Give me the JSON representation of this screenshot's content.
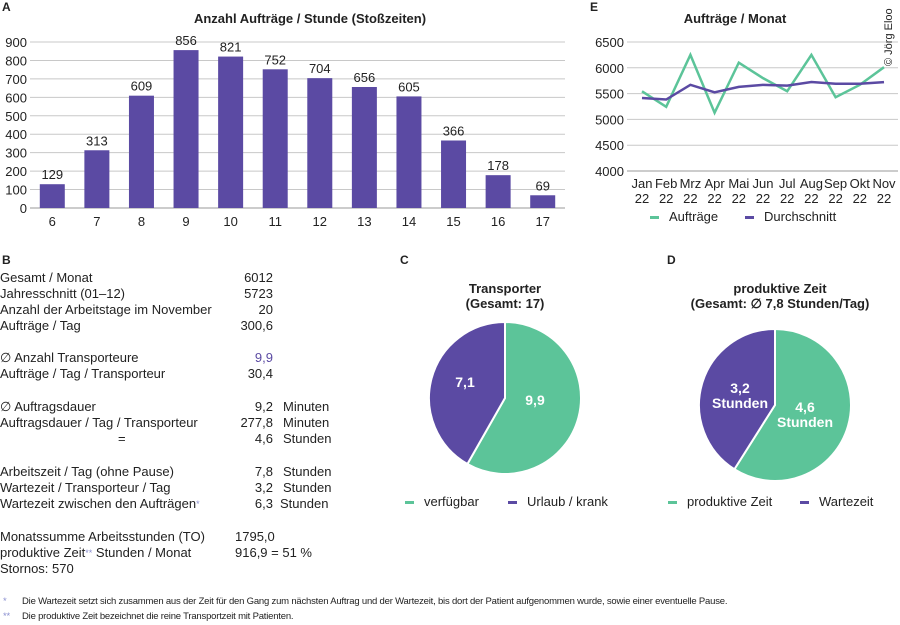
{
  "colors": {
    "green": "#5cc499",
    "purple": "#5b4aa3",
    "grid": "#c8c8c8",
    "highlight": "#5b4aa3",
    "footnote_marker": "#8a8fd0"
  },
  "copyright": "© Jörg Eloo",
  "chart_data": [
    {
      "panel": "A",
      "type": "bar",
      "title": "Anzahl Aufträge / Stunde (Stoßzeiten)",
      "categories": [
        "6",
        "7",
        "8",
        "9",
        "10",
        "11",
        "12",
        "13",
        "14",
        "15",
        "16",
        "17"
      ],
      "values": [
        129,
        313,
        609,
        856,
        821,
        752,
        704,
        656,
        605,
        366,
        178,
        69
      ],
      "data_labels": [
        "129",
        "313",
        "609",
        "856",
        "821",
        "752",
        "704",
        "656",
        "605",
        "366",
        "178",
        "69"
      ],
      "ylim": [
        0,
        900
      ],
      "yticks": [
        "0",
        "100",
        "200",
        "300",
        "400",
        "500",
        "600",
        "700",
        "800",
        "900"
      ],
      "grid": true,
      "color": "#5b4aa3"
    },
    {
      "panel": "E",
      "type": "line",
      "title": "Aufträge / Monat",
      "categories": [
        [
          "Jan",
          "22"
        ],
        [
          "Feb",
          "22"
        ],
        [
          "Mrz",
          "22"
        ],
        [
          "Apr",
          "22"
        ],
        [
          "Mai",
          "22"
        ],
        [
          "Jun",
          "22"
        ],
        [
          "Jul",
          "22"
        ],
        [
          "Aug",
          "22"
        ],
        [
          "Sep",
          "22"
        ],
        [
          "Okt",
          "22"
        ],
        [
          "Nov",
          "22"
        ]
      ],
      "series": [
        {
          "name": "Aufträge",
          "color": "#5cc499",
          "values": [
            5545,
            5245,
            6250,
            5130,
            6100,
            5800,
            5545,
            6250,
            5430,
            5670,
            6012
          ]
        },
        {
          "name": "Durchschnitt",
          "color": "#5b4aa3",
          "values": [
            5415,
            5385,
            5670,
            5525,
            5630,
            5670,
            5655,
            5725,
            5690,
            5690,
            5723
          ]
        }
      ],
      "ylim": [
        4000,
        6500
      ],
      "yticks": [
        "4000",
        "4500",
        "5000",
        "5500",
        "6000",
        "6500"
      ],
      "grid": true,
      "legend": "bottom"
    },
    {
      "panel": "C",
      "type": "pie",
      "title": [
        "Transporter",
        "(Gesamt: 17)"
      ],
      "slices": [
        {
          "name": "verfügbar",
          "value": 9.9,
          "label": [
            "9,9"
          ],
          "color": "#5cc499"
        },
        {
          "name": "Urlaub / krank",
          "value": 7.1,
          "label": [
            "7,1"
          ],
          "color": "#5b4aa3"
        }
      ],
      "legend": "bottom"
    },
    {
      "panel": "D",
      "type": "pie",
      "title": [
        "produktive Zeit",
        "(Gesamt: ∅ 7,8 Stunden/Tag)"
      ],
      "slices": [
        {
          "name": "produktive Zeit",
          "value": 4.6,
          "label": [
            "4,6",
            "Stunden"
          ],
          "color": "#5cc499"
        },
        {
          "name": "Wartezeit",
          "value": 3.2,
          "label": [
            "3,2",
            "Stunden"
          ],
          "color": "#5b4aa3"
        }
      ],
      "legend": "bottom"
    }
  ],
  "table_b": {
    "panel": "B",
    "rows": [
      {
        "label": "Gesamt / Monat",
        "value": "6012",
        "unit": ""
      },
      {
        "label": "Jahresschnitt (01–12)",
        "value": "5723",
        "unit": ""
      },
      {
        "label": "Anzahl der Arbeitstage im November",
        "value": "20",
        "unit": ""
      },
      {
        "label": "Aufträge / Tag",
        "value": "300,6",
        "unit": ""
      },
      {
        "label": "∅ Anzahl Transporteure",
        "value": "9,9",
        "unit": ""
      },
      {
        "label": "Aufträge / Tag / Transporteur",
        "value": "30,4",
        "unit": ""
      },
      {
        "label": "∅ Auftragsdauer",
        "value": "9,2",
        "unit": "Minuten"
      },
      {
        "label": "Auftragsdauer / Tag / Transporteur",
        "value": "277,8",
        "unit": "Minuten"
      },
      {
        "label": "=",
        "value": "4,6",
        "unit": "Stunden"
      },
      {
        "label": "Arbeitszeit / Tag (ohne Pause)",
        "value": "7,8",
        "unit": "Stunden"
      },
      {
        "label": "Wartezeit / Transporteur / Tag",
        "value": "3,2",
        "unit": "Stunden"
      },
      {
        "label": "Wartezeit zwischen den Aufträgen",
        "sup": "*",
        "value": "6,3",
        "unit": "Stunden"
      },
      {
        "label": "Monatssumme Arbeitsstunden (TO)",
        "value": "1795,0",
        "unit": ""
      },
      {
        "label": "produktive Zeit",
        "sup": "**",
        "label_after": " Stunden / Monat",
        "value": "916,9 = 51 %",
        "unit": ""
      },
      {
        "label": "Stornos: 570",
        "value": "",
        "unit": ""
      }
    ]
  },
  "footnotes": [
    {
      "marker": "*",
      "text": "Die Wartezeit setzt sich zusammen aus der Zeit für den Gang zum nächsten Auftrag und der Wartezeit, bis dort der Patient aufgenommen wurde, sowie einer eventuelle Pause."
    },
    {
      "marker": "**",
      "text": "Die produktive Zeit bezeichnet die reine Transportzeit mit Patienten."
    }
  ]
}
